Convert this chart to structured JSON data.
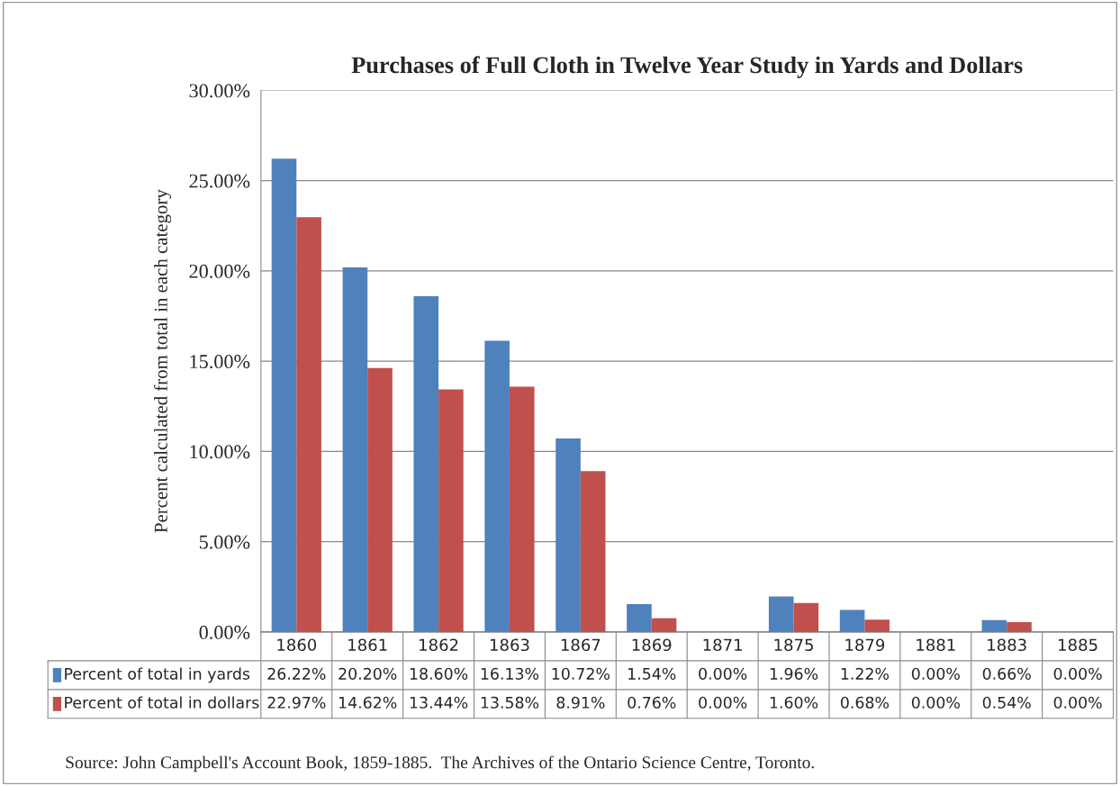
{
  "chart_data": {
    "type": "bar",
    "title": "Purchases of Full Cloth in Twelve Year Study in Yards and Dollars",
    "ylabel": "Percent calculated from total in each category",
    "categories": [
      "1860",
      "1861",
      "1862",
      "1863",
      "1867",
      "1869",
      "1871",
      "1875",
      "1879",
      "1881",
      "1883",
      "1885"
    ],
    "series": [
      {
        "name": "Percent of total in yards",
        "color": "#4f81bd",
        "values": [
          26.22,
          20.2,
          18.6,
          16.13,
          10.72,
          1.54,
          0.0,
          1.96,
          1.22,
          0.0,
          0.66,
          0.0
        ],
        "value_labels": [
          "26.22%",
          "20.20%",
          "18.60%",
          "16.13%",
          "10.72%",
          "1.54%",
          "0.00%",
          "1.96%",
          "1.22%",
          "0.00%",
          "0.66%",
          "0.00%"
        ]
      },
      {
        "name": "Percent of total in dollars",
        "color": "#c0504d",
        "values": [
          22.97,
          14.62,
          13.44,
          13.58,
          8.91,
          0.76,
          0.0,
          1.6,
          0.68,
          0.0,
          0.54,
          0.0
        ],
        "value_labels": [
          "22.97%",
          "14.62%",
          "13.44%",
          "13.58%",
          "8.91%",
          "0.76%",
          "0.00%",
          "1.60%",
          "0.68%",
          "0.00%",
          "0.54%",
          "0.00%"
        ]
      }
    ],
    "ylim": [
      0,
      30
    ],
    "yticks": [
      {
        "value": 0,
        "label": "0.00%"
      },
      {
        "value": 5,
        "label": "5.00%"
      },
      {
        "value": 10,
        "label": "10.00%"
      },
      {
        "value": 15,
        "label": "15.00%"
      },
      {
        "value": 20,
        "label": "20.00%"
      },
      {
        "value": 25,
        "label": "25.00%"
      },
      {
        "value": 30,
        "label": "30.00%"
      }
    ],
    "grid": "y",
    "legend": "bottom",
    "annotations": [
      "Source: John Campbell's Account Book, 1859-1885.  The Archives of the Ontario Science Centre, Toronto."
    ]
  }
}
